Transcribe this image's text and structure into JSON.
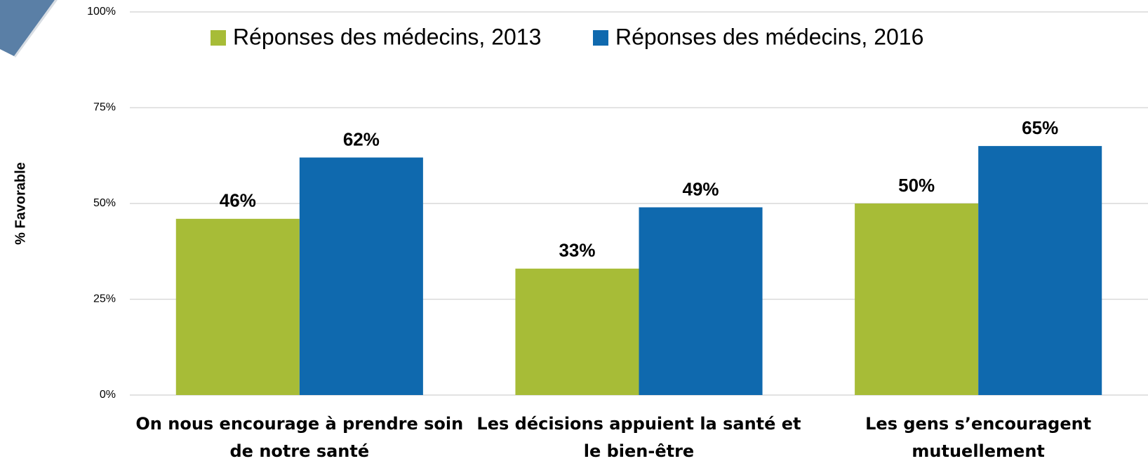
{
  "chart_data": {
    "type": "bar",
    "y_label": "% Favorable",
    "categories": [
      "On nous encourage à prendre soin de notre santé",
      "Les décisions appuient la santé et le bien-être",
      "Les gens s’encouragent mutuellement"
    ],
    "series": [
      {
        "name": "Réponses des médecins, 2013",
        "color": "#a7bc37",
        "values": [
          46,
          33,
          50
        ],
        "value_labels": [
          "46%",
          "33%",
          "50%"
        ]
      },
      {
        "name": "Réponses des médecins, 2016",
        "color": "#0f69ae",
        "values": [
          62,
          49,
          65
        ],
        "value_labels": [
          "62%",
          "49%",
          "65%"
        ]
      }
    ],
    "ylim": [
      0,
      100
    ],
    "yticks": [
      {
        "value": 0,
        "label": "0%"
      },
      {
        "value": 25,
        "label": "25%"
      },
      {
        "value": 50,
        "label": "50%"
      },
      {
        "value": 75,
        "label": "75%"
      },
      {
        "value": 100,
        "label": "100%"
      }
    ],
    "grid": true,
    "legend": "top"
  }
}
